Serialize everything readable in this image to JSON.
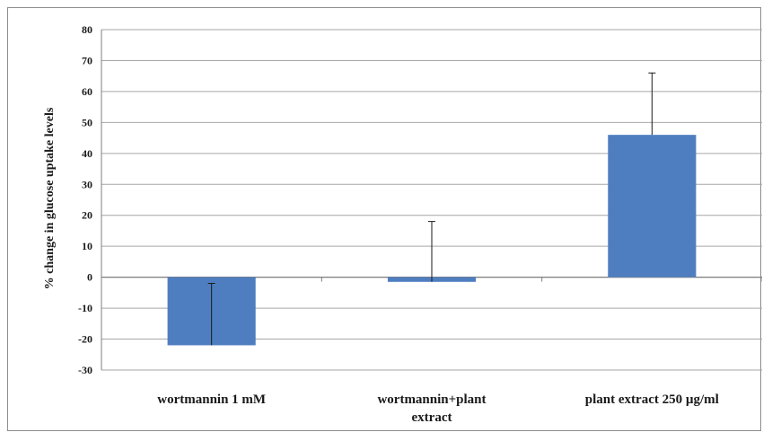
{
  "chart_data": {
    "type": "bar",
    "title": "",
    "xlabel": "",
    "ylabel": "% change in glucose uptake  levels",
    "categories": [
      [
        "wortmannin 1 mM"
      ],
      [
        "wortmannin+plant",
        "extract"
      ],
      [
        "plant extract 250 µg/ml"
      ]
    ],
    "series": [
      {
        "values": [
          -22,
          -1.5,
          46
        ],
        "error_bars": [
          {
            "low": -22,
            "high": -2
          },
          {
            "low": -1.5,
            "high": 18
          },
          {
            "low": 46,
            "high": 66
          }
        ]
      }
    ],
    "ylim": [
      -30,
      80
    ],
    "yticks": [
      -30,
      -20,
      -10,
      0,
      10,
      20,
      30,
      40,
      50,
      60,
      70,
      80
    ],
    "grid": true,
    "legend": "none",
    "colors": {
      "bar": "#4f7ec0",
      "grid": "#a6a6a6",
      "axis": "#7f7f7f",
      "error": "#1a1a1a"
    }
  }
}
